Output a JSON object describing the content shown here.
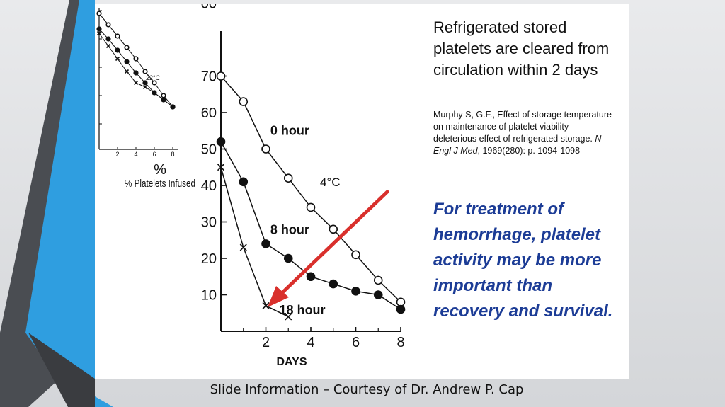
{
  "slide": {
    "headline": "Refrigerated stored platelets are cleared from circulation within 2 days",
    "citation": {
      "authors": "Murphy S, G.F., Effect of storage temperature on maintenance of platelet viability - deleterious effect of refrigerated storage. ",
      "journal": "N Engl J Med",
      "details": ", 1969(280): p. 1094-1098"
    },
    "emphasis": "For treatment of hemorrhage, platelet activity may be more important than recovery and survival.",
    "footer": "Slide Information – Courtesy of Dr. Andrew P. Cap",
    "colors": {
      "emphasis": "#1c3c96",
      "arrow": "#d9302c",
      "accent_blue": "#2f9ee0"
    }
  },
  "inset_chart": {
    "annotation": "22°C",
    "x_ticks": [
      "2",
      "4",
      "6",
      "8"
    ],
    "series": [
      {
        "marker": "open-circle",
        "x": [
          0,
          1,
          2,
          3,
          4,
          5,
          6,
          7,
          8
        ],
        "y": [
          96,
          88,
          80,
          72,
          64,
          55,
          47,
          38,
          30
        ]
      },
      {
        "marker": "filled-circle",
        "x": [
          0,
          1,
          2,
          3,
          4,
          5,
          6,
          7,
          8
        ],
        "y": [
          85,
          78,
          70,
          62,
          54,
          47,
          40,
          35,
          30
        ]
      },
      {
        "marker": "cross",
        "x": [
          0,
          1,
          2,
          3,
          4,
          5,
          6,
          7,
          8
        ],
        "y": [
          82,
          73,
          64,
          55,
          47,
          44,
          40,
          35,
          30
        ]
      }
    ]
  },
  "chart_data": {
    "type": "line",
    "ylabel": "% Platelets Infused",
    "xlabel": "DAYS",
    "x_ticks": [
      "2",
      "4",
      "6",
      "8"
    ],
    "y_ticks": [
      "10",
      "20",
      "30",
      "40",
      "50",
      "60",
      "70",
      "00"
    ],
    "xlim": [
      0,
      8
    ],
    "ylim": [
      0,
      100
    ],
    "temperature_label": "4°C",
    "series": [
      {
        "name": "0 hour",
        "marker": "open-circle",
        "x": [
          0,
          1,
          2,
          3,
          4,
          5,
          6,
          7,
          8
        ],
        "y": [
          70,
          63,
          50,
          42,
          34,
          28,
          21,
          14,
          8
        ]
      },
      {
        "name": "8 hour",
        "marker": "filled-circle",
        "x": [
          0,
          1,
          2,
          3,
          4,
          5,
          6,
          7,
          8
        ],
        "y": [
          52,
          41,
          24,
          20,
          15,
          13,
          11,
          10,
          6
        ]
      },
      {
        "name": "18 hour",
        "marker": "cross",
        "x": [
          0,
          1,
          2,
          3
        ],
        "y": [
          45,
          23,
          7,
          4
        ]
      }
    ]
  }
}
